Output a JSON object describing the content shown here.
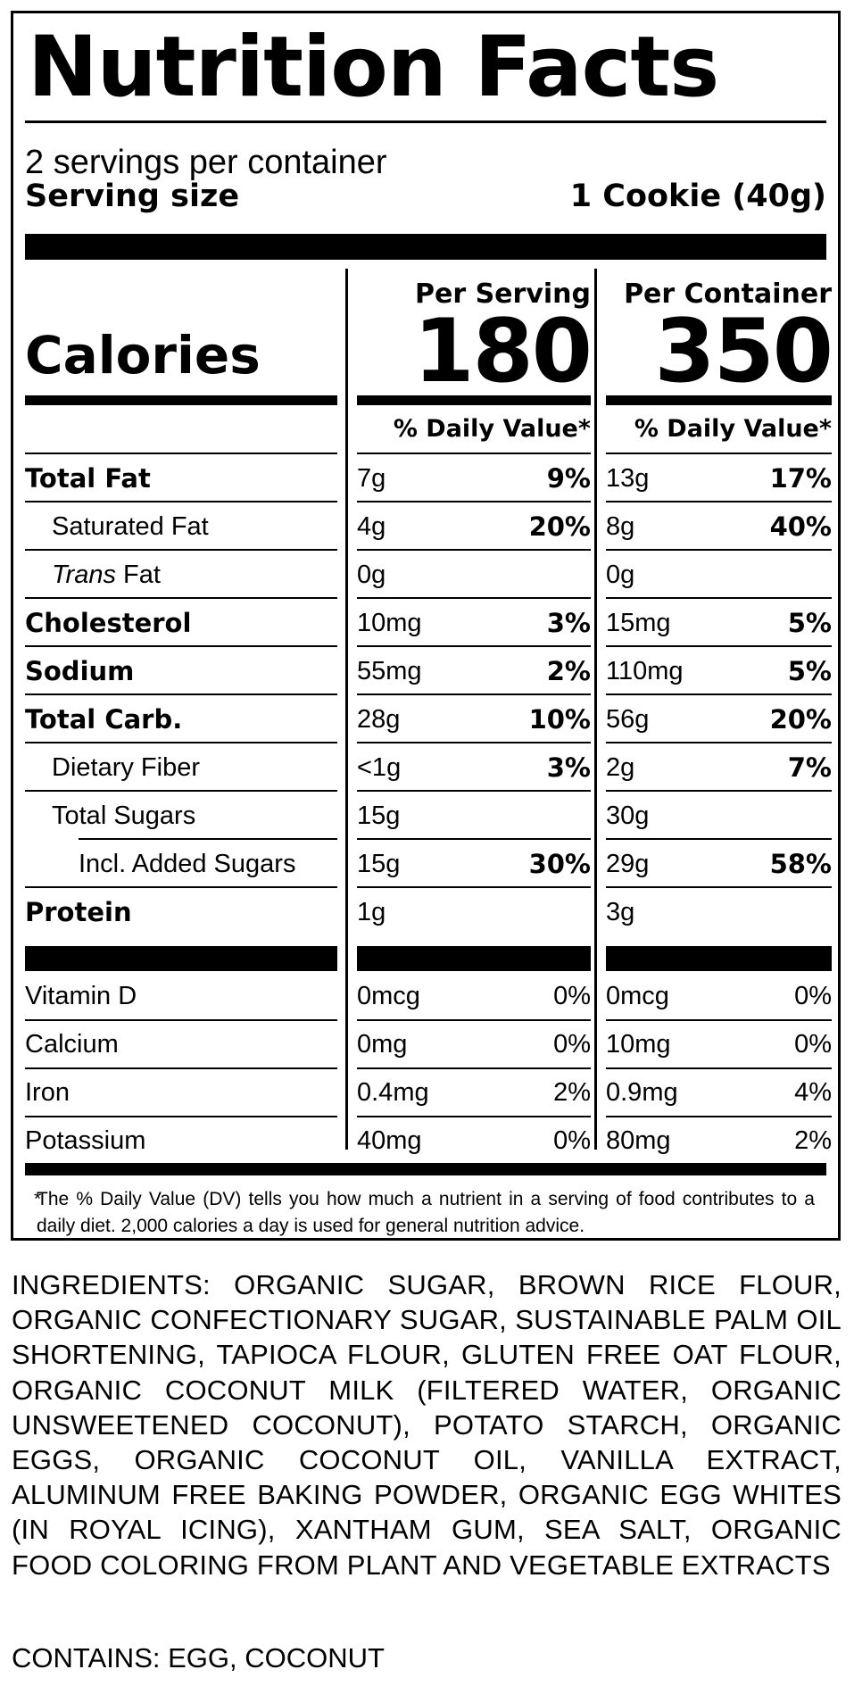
{
  "title": "Nutrition Facts",
  "servings_per_container": "2 servings per container",
  "serving_size_label": "Serving size",
  "serving_size_value": "1 Cookie (40g)",
  "calories_label": "Calories",
  "columns": {
    "per_serving": "Per Serving",
    "per_container": "Per Container"
  },
  "calories": {
    "per_serving": "180",
    "per_container": "350"
  },
  "dv_header": "% Daily Value*",
  "nutrients": [
    {
      "name": "Total Fat",
      "bold": true,
      "indent": 0,
      "ps_amount": "7g",
      "ps_dv": "9%",
      "pc_amount": "13g",
      "pc_dv": "17%"
    },
    {
      "name": "Saturated Fat",
      "bold": false,
      "indent": 1,
      "ps_amount": "4g",
      "ps_dv": "20%",
      "pc_amount": "8g",
      "pc_dv": "40%"
    },
    {
      "name": "Trans",
      "name_suffix": " Fat",
      "italic_prefix": true,
      "bold": false,
      "indent": 1,
      "ps_amount": "0g",
      "ps_dv": "",
      "pc_amount": "0g",
      "pc_dv": ""
    },
    {
      "name": "Cholesterol",
      "bold": true,
      "indent": 0,
      "ps_amount": "10mg",
      "ps_dv": "3%",
      "pc_amount": "15mg",
      "pc_dv": "5%"
    },
    {
      "name": "Sodium",
      "bold": true,
      "indent": 0,
      "ps_amount": "55mg",
      "ps_dv": "2%",
      "pc_amount": "110mg",
      "pc_dv": "5%"
    },
    {
      "name": "Total Carb.",
      "bold": true,
      "indent": 0,
      "ps_amount": "28g",
      "ps_dv": "10%",
      "pc_amount": "56g",
      "pc_dv": "20%"
    },
    {
      "name": "Dietary Fiber",
      "bold": false,
      "indent": 1,
      "ps_amount": "<1g",
      "ps_dv": "3%",
      "pc_amount": "2g",
      "pc_dv": "7%"
    },
    {
      "name": "Total Sugars",
      "bold": false,
      "indent": 1,
      "ps_amount": "15g",
      "ps_dv": "",
      "pc_amount": "30g",
      "pc_dv": ""
    },
    {
      "name": "Incl. Added Sugars",
      "bold": false,
      "indent": 2,
      "ps_amount": "15g",
      "ps_dv": "30%",
      "pc_amount": "29g",
      "pc_dv": "58%"
    },
    {
      "name": "Protein",
      "bold": true,
      "indent": 0,
      "ps_amount": "1g",
      "ps_dv": "",
      "pc_amount": "3g",
      "pc_dv": ""
    }
  ],
  "vitamins": [
    {
      "name": "Vitamin D",
      "ps_amount": "0mcg",
      "ps_dv": "0%",
      "pc_amount": "0mcg",
      "pc_dv": "0%"
    },
    {
      "name": "Calcium",
      "ps_amount": "0mg",
      "ps_dv": "0%",
      "pc_amount": "10mg",
      "pc_dv": "0%"
    },
    {
      "name": "Iron",
      "ps_amount": "0.4mg",
      "ps_dv": "2%",
      "pc_amount": "0.9mg",
      "pc_dv": "4%"
    },
    {
      "name": "Potassium",
      "ps_amount": "40mg",
      "ps_dv": "0%",
      "pc_amount": "80mg",
      "pc_dv": "2%"
    }
  ],
  "footnote_star": "*",
  "footnote": "The % Daily Value (DV) tells you how much a nutrient in a serving of food contributes to a daily diet. 2,000 calories a day is used for general nutrition advice.",
  "ingredients": "INGREDIENTS: ORGANIC SUGAR, BROWN RICE FLOUR, ORGANIC CONFECTIONARY SUGAR, SUSTAINABLE PALM OIL SHORTENING, TAPIOCA FLOUR, GLUTEN FREE OAT FLOUR, ORGANIC COCONUT MILK (FILTERED WATER, ORGANIC UNSWEETENED COCONUT), POTATO STARCH, ORGANIC EGGS, ORGANIC COCONUT OIL, VANILLA EXTRACT, ALUMINUM FREE BAKING POWDER, ORGANIC EGG WHITES (IN ROYAL ICING), XANTHAM GUM, SEA SALT, ORGANIC FOOD COLORING FROM PLANT AND VEGETABLE EXTRACTS",
  "contains": "CONTAINS: EGG, COCONUT"
}
